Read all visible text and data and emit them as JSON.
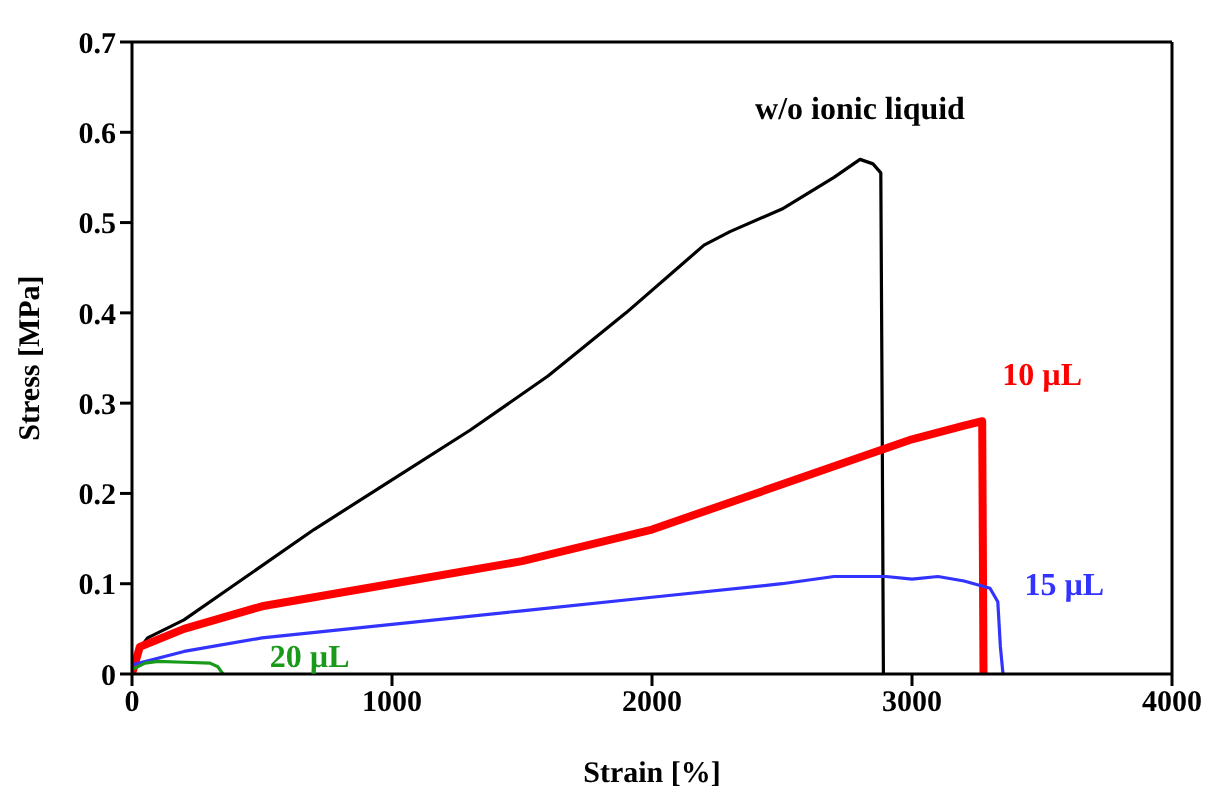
{
  "chart_data": {
    "type": "line",
    "xlabel": "Strain [%]",
    "ylabel": "Stress [MPa]",
    "xlim": [
      0,
      4000
    ],
    "xticks": [
      0,
      1000,
      2000,
      3000,
      4000
    ],
    "ylim": [
      0,
      0.7
    ],
    "yticks": [
      0,
      0.1,
      0.2,
      0.3,
      0.4,
      0.5,
      0.6,
      0.7
    ],
    "marker": "none",
    "line_style": "solid",
    "series": [
      {
        "name": "w/o ionic liquid",
        "color": "#000000",
        "x": [
          0,
          20,
          60,
          200,
          400,
          700,
          1000,
          1300,
          1600,
          1900,
          2100,
          2200,
          2300,
          2500,
          2700,
          2800,
          2850,
          2880,
          2885,
          2890
        ],
        "values": [
          0,
          0.025,
          0.04,
          0.06,
          0.1,
          0.16,
          0.215,
          0.27,
          0.33,
          0.4,
          0.45,
          0.475,
          0.49,
          0.515,
          0.55,
          0.57,
          0.565,
          0.555,
          0.3,
          0
        ]
      },
      {
        "name": "10 µL",
        "color": "#ff0000",
        "x": [
          0,
          30,
          200,
          500,
          1000,
          1500,
          2000,
          2400,
          2800,
          3000,
          3200,
          3270,
          3275
        ],
        "values": [
          0,
          0.03,
          0.05,
          0.075,
          0.1,
          0.125,
          0.16,
          0.2,
          0.24,
          0.26,
          0.275,
          0.28,
          0
        ]
      },
      {
        "name": "15 µL",
        "color": "#3333ff",
        "x": [
          0,
          200,
          500,
          1000,
          1500,
          2000,
          2500,
          2700,
          2900,
          3000,
          3100,
          3200,
          3300,
          3330,
          3340,
          3350
        ],
        "values": [
          0.01,
          0.025,
          0.04,
          0.055,
          0.07,
          0.085,
          0.1,
          0.108,
          0.108,
          0.105,
          0.108,
          0.103,
          0.095,
          0.08,
          0.03,
          0
        ]
      },
      {
        "name": "20 µL",
        "color": "#1a9a1a",
        "x": [
          0,
          50,
          100,
          200,
          300,
          330,
          350
        ],
        "values": [
          0.005,
          0.012,
          0.014,
          0.013,
          0.012,
          0.008,
          0
        ]
      }
    ]
  }
}
